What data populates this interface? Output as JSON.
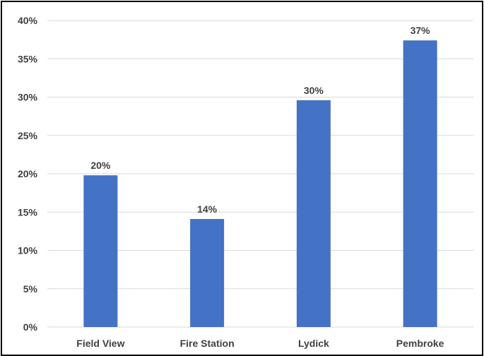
{
  "chart_data": {
    "type": "bar",
    "categories": [
      "Field View",
      "Fire Station",
      "Lydick",
      "Pembroke"
    ],
    "values": [
      19.8,
      14.1,
      29.6,
      37.4
    ],
    "data_labels": [
      "20%",
      "14%",
      "30%",
      "37%"
    ],
    "title": "",
    "xlabel": "",
    "ylabel": "",
    "ylim": [
      0,
      40
    ],
    "yticks": [
      0,
      5,
      10,
      15,
      20,
      25,
      30,
      35,
      40
    ],
    "ytick_labels": [
      "0%",
      "5%",
      "10%",
      "15%",
      "20%",
      "25%",
      "30%",
      "35%",
      "40%"
    ],
    "grid": "horizontal",
    "legend": "none",
    "bar_color": "#4472C4",
    "grid_color": "#D9D9D9"
  }
}
